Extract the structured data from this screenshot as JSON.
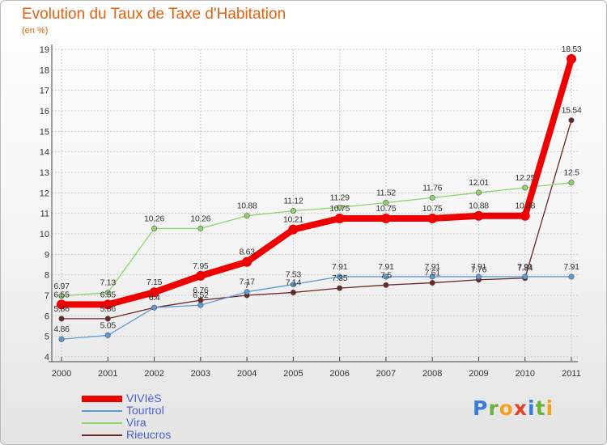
{
  "header": {
    "title": "Evolution du Taux de Taxe d'Habitation",
    "subtitle": "(en %)"
  },
  "colors": {
    "title": "#e4620c",
    "legend_text": "#4a5fc9",
    "axis": "#444444",
    "grid": "#c9c9c9"
  },
  "chart_data": {
    "type": "line",
    "title": "Evolution du Taux de Taxe d'Habitation",
    "ylabel": "(en %)",
    "xlabel": "",
    "x": [
      "2000",
      "2001",
      "2002",
      "2003",
      "2004",
      "2005",
      "2006",
      "2007",
      "2008",
      "2009",
      "2010",
      "2011"
    ],
    "ylim": [
      4,
      19
    ],
    "yticks": [
      4,
      5,
      6,
      7,
      8,
      9,
      10,
      11,
      12,
      13,
      14,
      15,
      16,
      17,
      18,
      19
    ],
    "grid": true,
    "legend_position": "bottom-left",
    "series": [
      {
        "name": "VIVIèS",
        "color": "#ee0000",
        "values": [
          6.55,
          6.55,
          7.15,
          7.95,
          8.63,
          10.21,
          10.75,
          10.75,
          10.75,
          10.88,
          10.88,
          18.53
        ],
        "labels": [
          "6.55",
          "6.55",
          "7.15",
          "7.95",
          "8.63",
          "10.21",
          "10.75",
          "10.75",
          "10.75",
          "10.88",
          "10.88",
          "18.53"
        ]
      },
      {
        "name": "Tourtrol",
        "color": "#5b9bd5",
        "values": [
          4.86,
          5.05,
          6.4,
          6.52,
          7.17,
          7.53,
          7.91,
          7.91,
          7.91,
          7.91,
          7.91,
          7.91
        ],
        "labels": [
          "4.86",
          "5.05",
          "6.4",
          "6.52",
          "7.17",
          "7.53",
          "7.91",
          "7.91",
          "7.91",
          "7.91",
          "7.91",
          "7.91"
        ]
      },
      {
        "name": "Vira",
        "color": "#8fd46a",
        "values": [
          6.97,
          7.13,
          10.26,
          10.26,
          10.88,
          11.12,
          11.29,
          11.52,
          11.76,
          12.01,
          12.25,
          12.5
        ],
        "labels": [
          "6.97",
          "7.13",
          "10.26",
          "10.26",
          "10.88",
          "11.12",
          "11.29",
          "11.52",
          "11.76",
          "12.01",
          "12.25",
          "12.5"
        ]
      },
      {
        "name": "Rieucros",
        "color": "#6b2626",
        "values": [
          5.86,
          5.86,
          6.4,
          6.76,
          7.0,
          7.14,
          7.35,
          7.5,
          7.61,
          7.76,
          7.84,
          15.54
        ],
        "labels": [
          "5.86",
          "5.86",
          "6.4",
          "6.76",
          "7",
          "7.14",
          "7.35",
          "7.5",
          "7.61",
          "7.76",
          "7.84",
          "15.54"
        ]
      }
    ]
  },
  "legend": {
    "items": [
      "VIVIèS",
      "Tourtrol",
      "Vira",
      "Rieucros"
    ]
  },
  "logo": {
    "letters": [
      "P",
      "r",
      "o",
      "x",
      "i",
      "t",
      "i"
    ],
    "colors": [
      "#3a7dd8",
      "#6cb33e",
      "#f4a21a",
      "#e5432a",
      "#3a7dd8",
      "#6cb33e",
      "#f4a21a"
    ]
  }
}
